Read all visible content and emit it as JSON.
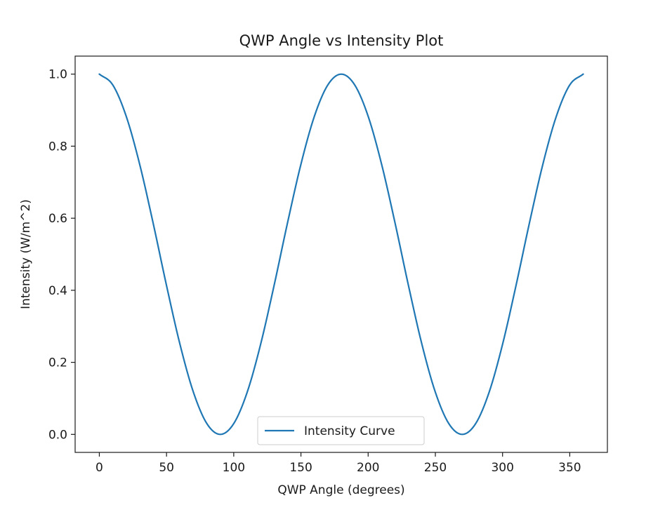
{
  "chart_data": {
    "type": "line",
    "title": "QWP Angle vs Intensity Plot",
    "xlabel": "QWP Angle (degrees)",
    "ylabel": "Intensity (W/m^2)",
    "xlim": [
      -18,
      378
    ],
    "ylim": [
      -0.05,
      1.05
    ],
    "xticks": [
      0,
      50,
      100,
      150,
      200,
      250,
      300,
      350
    ],
    "xtick_labels": [
      "0",
      "50",
      "100",
      "150",
      "200",
      "250",
      "300",
      "350"
    ],
    "yticks": [
      0.0,
      0.2,
      0.4,
      0.6,
      0.8,
      1.0
    ],
    "ytick_labels": [
      "0.0",
      "0.2",
      "0.4",
      "0.6",
      "0.8",
      "1.0"
    ],
    "grid": false,
    "legend_position": "lower-center",
    "series": [
      {
        "name": "Intensity Curve",
        "color": "#1f77b4",
        "x": [
          0,
          10,
          20,
          30,
          40,
          50,
          60,
          70,
          80,
          90,
          100,
          110,
          120,
          130,
          140,
          150,
          160,
          170,
          180,
          190,
          200,
          210,
          220,
          230,
          240,
          250,
          260,
          270,
          280,
          290,
          300,
          310,
          320,
          330,
          340,
          350,
          360
        ],
        "y": [
          1.0,
          0.97,
          0.883,
          0.75,
          0.587,
          0.413,
          0.25,
          0.117,
          0.03,
          0.0,
          0.03,
          0.117,
          0.25,
          0.413,
          0.587,
          0.75,
          0.883,
          0.97,
          1.0,
          0.97,
          0.883,
          0.75,
          0.587,
          0.413,
          0.25,
          0.117,
          0.03,
          0.0,
          0.03,
          0.117,
          0.25,
          0.413,
          0.587,
          0.75,
          0.883,
          0.97,
          1.0
        ]
      }
    ]
  }
}
